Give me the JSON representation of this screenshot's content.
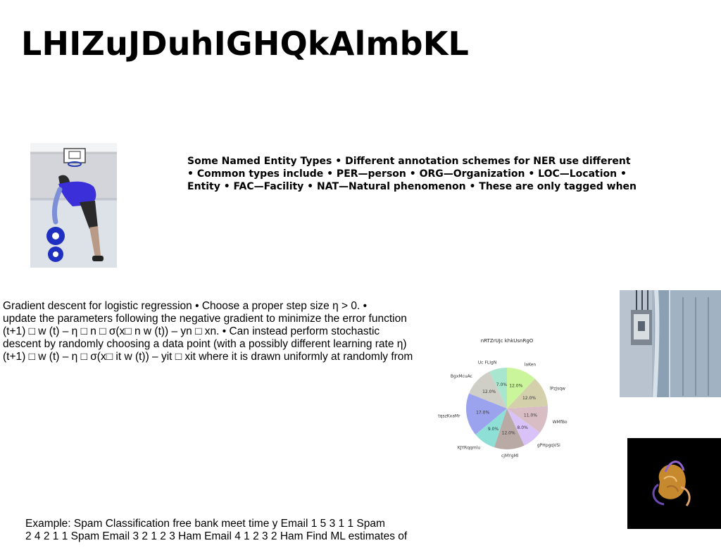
{
  "title": "LHIZuJDuhIGHQkAlmbKL",
  "ner_lines": [
    "Some Named Entity Types • Different annotation schemes for NER use different",
    "• Common types include • PER—person • ORG—Organization • LOC—Location •",
    "Entity • FAC—Facility • NAT—Natural phenomenon • These are only tagged when"
  ],
  "gradient_lines": [
    "Gradient descent for logistic regression • Choose a proper step size η > 0. •",
    "update the parameters following the negative gradient to minimize the error function",
    "(t+1) □ w (t) – η □ n □ σ(x□ n w (t)) – yn □ xn. • Can instead perform stochastic",
    "descent by randomly choosing a data point (with a possibly different learning rate η)",
    "(t+1) □ w (t) – η □ σ(x□ it w (t)) – yit □ xit where it is drawn uniformly at randomly from"
  ],
  "example_lines": [
    "Example: Spam Classification free bank meet time y Email 1 5 3 1 1 Spam",
    "2 4 2 1 1 Spam Email 3 2 1 2 3 Ham Email 4 1 2 3 2 Ham Find ML estimates of"
  ],
  "chart_data": {
    "type": "pie",
    "title": "nRTZrUJc khkUsnRgO",
    "start_angle_deg": 90,
    "counterclock": true,
    "slices": [
      {
        "label": "Uc FLIgN",
        "value": 7.0,
        "pct_label": "7.0%",
        "color": "#a8e6cf"
      },
      {
        "label": "BgxMcuAc",
        "value": 12.0,
        "pct_label": "12.0%",
        "color": "#cfcfc8"
      },
      {
        "label": "tqszKxaMr",
        "value": 17.0,
        "pct_label": "17.0%",
        "color": "#9ba3ef"
      },
      {
        "label": "KJYRqqmlu",
        "value": 9.0,
        "pct_label": "9.0%",
        "color": "#8ee0d6"
      },
      {
        "label": "cjMYgMl",
        "value": 12.0,
        "pct_label": "12.0%",
        "color": "#b9aaa6"
      },
      {
        "label": "gPHpgqVSi",
        "value": 8.0,
        "pct_label": "8.0%",
        "color": "#d8c2f8"
      },
      {
        "label": "WMfBo",
        "value": 11.0,
        "pct_label": "11.0%",
        "color": "#d9bdc4"
      },
      {
        "label": "lPzJsqw",
        "value": 12.0,
        "pct_label": "12.0%",
        "color": "#d4d0ab"
      },
      {
        "label": "laKen",
        "value": 12.0,
        "pct_label": "12.0%",
        "color": "#caf59b"
      }
    ]
  }
}
